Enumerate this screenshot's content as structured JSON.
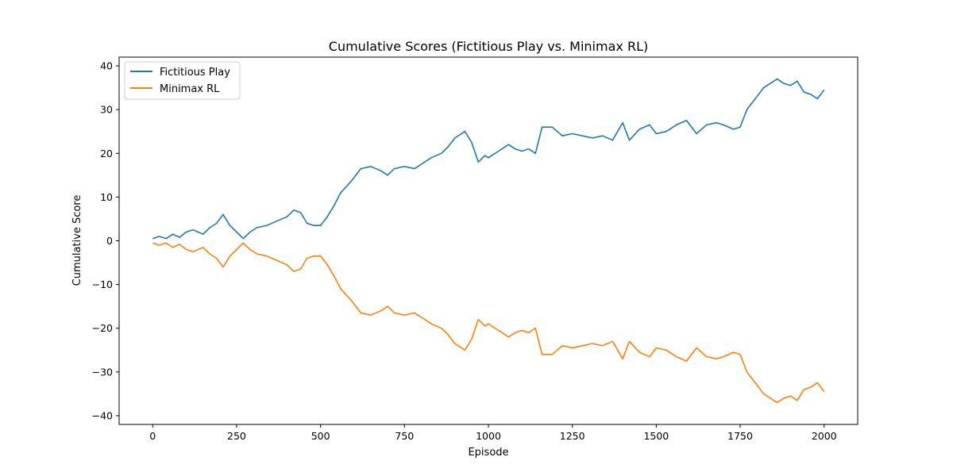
{
  "chart_data": {
    "type": "line",
    "title": "Cumulative Scores (Fictitious Play vs. Minimax RL)",
    "xlabel": "Episode",
    "ylabel": "Cumulative Score",
    "xlim": [
      -100,
      2100
    ],
    "ylim": [
      -42,
      42
    ],
    "xticks": [
      0,
      250,
      500,
      750,
      1000,
      1250,
      1500,
      1750,
      2000
    ],
    "yticks": [
      -40,
      -30,
      -20,
      -10,
      0,
      10,
      20,
      30,
      40
    ],
    "grid": false,
    "legend_position": "top-left",
    "series": [
      {
        "name": "Fictitious Play",
        "color": "#1f77b4",
        "x": [
          0,
          20,
          40,
          60,
          80,
          100,
          120,
          150,
          170,
          190,
          210,
          230,
          250,
          270,
          290,
          310,
          340,
          370,
          400,
          420,
          440,
          460,
          480,
          500,
          520,
          540,
          560,
          590,
          620,
          650,
          680,
          700,
          720,
          750,
          780,
          800,
          830,
          860,
          880,
          900,
          930,
          950,
          970,
          990,
          1000,
          1030,
          1060,
          1080,
          1100,
          1120,
          1140,
          1160,
          1190,
          1220,
          1250,
          1280,
          1310,
          1340,
          1370,
          1400,
          1420,
          1450,
          1480,
          1500,
          1530,
          1560,
          1590,
          1620,
          1650,
          1680,
          1700,
          1730,
          1750,
          1770,
          1800,
          1820,
          1840,
          1860,
          1880,
          1900,
          1920,
          1940,
          1960,
          1980,
          2000
        ],
        "values": [
          0.5,
          1.0,
          0.5,
          1.5,
          0.8,
          2.0,
          2.5,
          1.5,
          3.0,
          4.0,
          6.0,
          3.5,
          2.0,
          0.5,
          2.0,
          3.0,
          3.5,
          4.5,
          5.5,
          7.0,
          6.5,
          4.0,
          3.5,
          3.5,
          5.5,
          8.0,
          11.0,
          13.5,
          16.5,
          17.0,
          16.0,
          15.0,
          16.5,
          17.0,
          16.5,
          17.5,
          19.0,
          20.0,
          21.5,
          23.5,
          25.0,
          22.5,
          18.0,
          19.5,
          19.0,
          20.5,
          22.0,
          21.0,
          20.5,
          21.0,
          20.0,
          26.0,
          26.0,
          24.0,
          24.5,
          24.0,
          23.5,
          24.0,
          23.0,
          27.0,
          23.0,
          25.5,
          26.5,
          24.5,
          25.0,
          26.5,
          27.5,
          24.5,
          26.5,
          27.0,
          26.5,
          25.5,
          26.0,
          30.0,
          33.0,
          35.0,
          36.0,
          37.0,
          36.0,
          35.5,
          36.5,
          34.0,
          33.5,
          32.5,
          34.5
        ]
      },
      {
        "name": "Minimax RL",
        "color": "#ff7f0e",
        "x": [
          0,
          20,
          40,
          60,
          80,
          100,
          120,
          150,
          170,
          190,
          210,
          230,
          250,
          270,
          290,
          310,
          340,
          370,
          400,
          420,
          440,
          460,
          480,
          500,
          520,
          540,
          560,
          590,
          620,
          650,
          680,
          700,
          720,
          750,
          780,
          800,
          830,
          860,
          880,
          900,
          930,
          950,
          970,
          990,
          1000,
          1030,
          1060,
          1080,
          1100,
          1120,
          1140,
          1160,
          1190,
          1220,
          1250,
          1280,
          1310,
          1340,
          1370,
          1400,
          1420,
          1450,
          1480,
          1500,
          1530,
          1560,
          1590,
          1620,
          1650,
          1680,
          1700,
          1730,
          1750,
          1770,
          1800,
          1820,
          1840,
          1860,
          1880,
          1900,
          1920,
          1940,
          1960,
          1980,
          2000
        ],
        "values": [
          -0.5,
          -1.0,
          -0.5,
          -1.5,
          -0.8,
          -2.0,
          -2.5,
          -1.5,
          -3.0,
          -4.0,
          -6.0,
          -3.5,
          -2.0,
          -0.5,
          -2.0,
          -3.0,
          -3.5,
          -4.5,
          -5.5,
          -7.0,
          -6.5,
          -4.0,
          -3.5,
          -3.5,
          -5.5,
          -8.0,
          -11.0,
          -13.5,
          -16.5,
          -17.0,
          -16.0,
          -15.0,
          -16.5,
          -17.0,
          -16.5,
          -17.5,
          -19.0,
          -20.0,
          -21.5,
          -23.5,
          -25.0,
          -22.5,
          -18.0,
          -19.5,
          -19.0,
          -20.5,
          -22.0,
          -21.0,
          -20.5,
          -21.0,
          -20.0,
          -26.0,
          -26.0,
          -24.0,
          -24.5,
          -24.0,
          -23.5,
          -24.0,
          -23.0,
          -27.0,
          -23.0,
          -25.5,
          -26.5,
          -24.5,
          -25.0,
          -26.5,
          -27.5,
          -24.5,
          -26.5,
          -27.0,
          -26.5,
          -25.5,
          -26.0,
          -30.0,
          -33.0,
          -35.0,
          -36.0,
          -37.0,
          -36.0,
          -35.5,
          -36.5,
          -34.0,
          -33.5,
          -32.5,
          -34.5
        ]
      }
    ]
  }
}
